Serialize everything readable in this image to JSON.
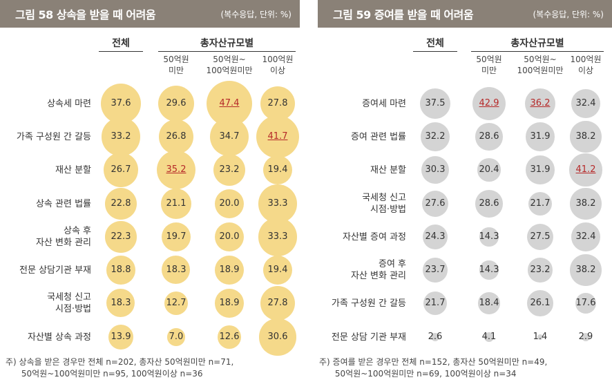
{
  "colors": {
    "title_bg": "#8a8177",
    "left_bubble": "#f5d98a",
    "right_bubble": "#d4d4d4",
    "highlight": "#b52828"
  },
  "chart_data": [
    {
      "type": "table",
      "title": "그림 58  상속을 받을 때 어려움",
      "unit_note": "(복수응답, 단위: %)",
      "header_total": "전체",
      "header_group": "총자산규모별",
      "columns": [
        "50억원\n미만",
        "50억원~\n100억원미만",
        "100억원\n이상"
      ],
      "rows": [
        {
          "label": "상속세 마련",
          "values": [
            37.6,
            29.6,
            47.4,
            27.8
          ],
          "display": [
            "37.6",
            "29.6",
            "47.4",
            "27.8"
          ],
          "highlight": [
            false,
            false,
            true,
            false
          ]
        },
        {
          "label": "가족 구성원 간 갈등",
          "values": [
            33.2,
            26.8,
            34.7,
            41.7
          ],
          "display": [
            "33.2",
            "26.8",
            "34.7",
            "41.7"
          ],
          "highlight": [
            false,
            false,
            false,
            true
          ]
        },
        {
          "label": "재산 분할",
          "values": [
            26.7,
            35.2,
            23.2,
            19.4
          ],
          "display": [
            "26.7",
            "35.2",
            "23.2",
            "19.4"
          ],
          "highlight": [
            false,
            true,
            false,
            false
          ]
        },
        {
          "label": "상속 관련 법률",
          "values": [
            22.8,
            21.1,
            20.0,
            33.3
          ],
          "display": [
            "22.8",
            "21.1",
            "20.0",
            "33.3"
          ],
          "highlight": [
            false,
            false,
            false,
            false
          ]
        },
        {
          "label": "상속 후\n자산 변화 관리",
          "values": [
            22.3,
            19.7,
            20.0,
            33.3
          ],
          "display": [
            "22.3",
            "19.7",
            "20.0",
            "33.3"
          ],
          "highlight": [
            false,
            false,
            false,
            false
          ]
        },
        {
          "label": "전문 상담기관 부재",
          "values": [
            18.8,
            18.3,
            18.9,
            19.4
          ],
          "display": [
            "18.8",
            "18.3",
            "18.9",
            "19.4"
          ],
          "highlight": [
            false,
            false,
            false,
            false
          ]
        },
        {
          "label": "국세청 신고\n시점·방법",
          "values": [
            18.3,
            12.7,
            18.9,
            27.8
          ],
          "display": [
            "18.3",
            "12.7",
            "18.9",
            "27.8"
          ],
          "highlight": [
            false,
            false,
            false,
            false
          ]
        },
        {
          "label": "자산별 상속 과정",
          "values": [
            13.9,
            7.0,
            12.6,
            30.6
          ],
          "display": [
            "13.9",
            "7.0",
            "12.6",
            "30.6"
          ],
          "highlight": [
            false,
            false,
            false,
            false
          ]
        }
      ],
      "note": "주) 상속을 받은 경우만 전체 n=202, 총자산 50억원미만 n=71,\n      50억원~100억원미만 n=95, 100억원이상 n=36"
    },
    {
      "type": "table",
      "title": "그림 59  증여를 받을 때 어려움",
      "unit_note": "(복수응답, 단위: %)",
      "header_total": "전체",
      "header_group": "총자산규모별",
      "columns": [
        "50억원\n미만",
        "50억원~\n100억원미만",
        "100억원\n이상"
      ],
      "rows": [
        {
          "label": "증여세 마련",
          "values": [
            37.5,
            42.9,
            36.2,
            32.4
          ],
          "display": [
            "37.5",
            "42.9",
            "36.2",
            "32.4"
          ],
          "highlight": [
            false,
            true,
            true,
            false
          ]
        },
        {
          "label": "증여 관련 법률",
          "values": [
            32.2,
            28.6,
            31.9,
            38.2
          ],
          "display": [
            "32.2",
            "28.6",
            "31.9",
            "38.2"
          ],
          "highlight": [
            false,
            false,
            false,
            false
          ]
        },
        {
          "label": "재산 분할",
          "values": [
            30.3,
            20.4,
            31.9,
            41.2
          ],
          "display": [
            "30.3",
            "20.4",
            "31.9",
            "41.2"
          ],
          "highlight": [
            false,
            false,
            false,
            true
          ]
        },
        {
          "label": "국세청 신고\n시점·방법",
          "values": [
            27.6,
            28.6,
            21.7,
            38.2
          ],
          "display": [
            "27.6",
            "28.6",
            "21.7",
            "38.2"
          ],
          "highlight": [
            false,
            false,
            false,
            false
          ]
        },
        {
          "label": "자산별 증여 과정",
          "values": [
            24.3,
            14.3,
            27.5,
            32.4
          ],
          "display": [
            "24.3",
            "14.3",
            "27.5",
            "32.4"
          ],
          "highlight": [
            false,
            false,
            false,
            false
          ]
        },
        {
          "label": "증여 후\n자산 변화 관리",
          "values": [
            23.7,
            14.3,
            23.2,
            38.2
          ],
          "display": [
            "23.7",
            "14.3",
            "23.2",
            "38.2"
          ],
          "highlight": [
            false,
            false,
            false,
            false
          ]
        },
        {
          "label": "가족 구성원 간 갈등",
          "values": [
            21.7,
            18.4,
            26.1,
            17.6
          ],
          "display": [
            "21.7",
            "18.4",
            "26.1",
            "17.6"
          ],
          "highlight": [
            false,
            false,
            false,
            false
          ]
        },
        {
          "label": "전문 상담 기관 부재",
          "values": [
            2.6,
            4.1,
            1.4,
            2.9
          ],
          "display": [
            "2.6",
            "4.1",
            "1.4",
            "2.9"
          ],
          "highlight": [
            false,
            false,
            false,
            false
          ]
        }
      ],
      "note": "주) 증여를 받은 경우만 전체 n=152, 총자산 50억원미만 n=49,\n      50억원~100억원미만 n=69, 100억원이상 n=34"
    }
  ]
}
